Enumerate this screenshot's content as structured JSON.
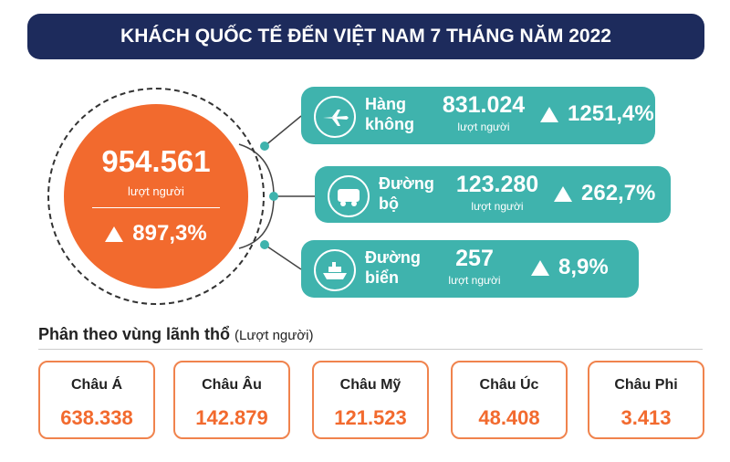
{
  "title": "KHÁCH QUỐC TẾ ĐẾN VIỆT NAM 7 THÁNG NĂM 2022",
  "total": {
    "value": "954.561",
    "unit": "lượt người",
    "growth": "897,3%"
  },
  "modes": [
    {
      "name_lines": [
        "Hàng",
        "không"
      ],
      "value": "831.024",
      "unit": "lượt người",
      "growth": "1251,4%"
    },
    {
      "name_lines": [
        "Đường",
        "bộ"
      ],
      "value": "123.280",
      "unit": "lượt người",
      "growth": "262,7%"
    },
    {
      "name_lines": [
        "Đường",
        "biển"
      ],
      "value": "257",
      "unit": "lượt người",
      "growth": "8,9%"
    }
  ],
  "regions_section": {
    "title": "Phân theo vùng lãnh thổ",
    "note": "(Lượt người)"
  },
  "regions": [
    {
      "name": "Châu Á",
      "value": "638.338"
    },
    {
      "name": "Châu Âu",
      "value": "142.879"
    },
    {
      "name": "Châu Mỹ",
      "value": "121.523"
    },
    {
      "name": "Châu Úc",
      "value": "48.408"
    },
    {
      "name": "Châu Phi",
      "value": "3.413"
    }
  ]
}
